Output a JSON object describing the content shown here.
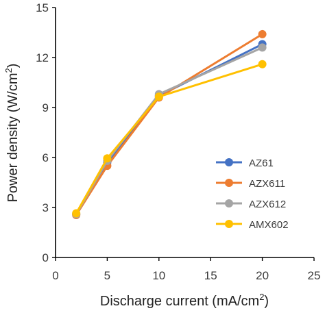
{
  "chart_data": {
    "type": "line",
    "xlabel": "Discharge current  (mA/cm",
    "xlabel_sup": "2",
    "xlabel_end": ")",
    "ylabel": "Power density  (W/cm",
    "ylabel_sup": "2",
    "ylabel_end": ")",
    "xlim": [
      0,
      25
    ],
    "ylim": [
      0,
      15
    ],
    "xticks": [
      0,
      5,
      10,
      15,
      20,
      25
    ],
    "yticks": [
      0,
      3,
      6,
      9,
      12,
      15
    ],
    "grid": false,
    "legend_position": "bottom-right",
    "x": [
      2,
      5,
      10,
      20
    ],
    "series": [
      {
        "name": "AZ61",
        "color": "#4472C4",
        "values": [
          2.6,
          5.7,
          9.7,
          12.8
        ]
      },
      {
        "name": "AZX611",
        "color": "#ED7D31",
        "values": [
          2.55,
          5.5,
          9.6,
          13.4
        ]
      },
      {
        "name": "AZX612",
        "color": "#A5A5A5",
        "values": [
          2.6,
          5.8,
          9.8,
          12.6
        ]
      },
      {
        "name": "AMX602",
        "color": "#FFC000",
        "values": [
          2.65,
          5.95,
          9.65,
          11.6
        ]
      }
    ]
  }
}
